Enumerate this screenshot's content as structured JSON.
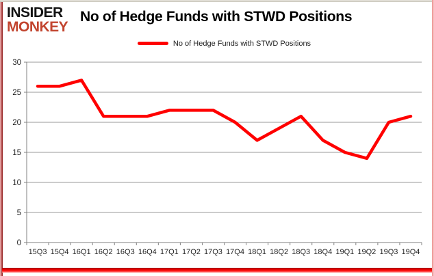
{
  "logo": {
    "line1": "INSIDER",
    "line2": "MONKEY"
  },
  "chart_data": {
    "type": "line",
    "title": "No of Hedge Funds with STWD Positions",
    "xlabel": "",
    "ylabel": "",
    "categories": [
      "15Q3",
      "15Q4",
      "16Q1",
      "16Q2",
      "16Q3",
      "16Q4",
      "17Q1",
      "17Q2",
      "17Q3",
      "17Q4",
      "18Q1",
      "18Q2",
      "18Q3",
      "18Q4",
      "19Q1",
      "19Q2",
      "19Q3",
      "19Q4"
    ],
    "series": [
      {
        "name": "No of Hedge Funds with STWD Positions",
        "values": [
          26,
          26,
          27,
          21,
          21,
          21,
          22,
          22,
          22,
          20,
          17,
          19,
          21,
          17,
          15,
          14,
          20,
          21
        ]
      }
    ],
    "ylim": [
      0,
      30
    ],
    "y_ticks": [
      0,
      5,
      10,
      15,
      20,
      25,
      30
    ],
    "grid": true,
    "legend_position": "top-center",
    "colors": {
      "line": "#FF0000",
      "grid": "#9A9A9A",
      "axis": "#808080",
      "text": "#1F1F1F",
      "logo_black": "#121212",
      "logo_red": "#C2442E",
      "bottom_bar": "#FF0000"
    }
  }
}
